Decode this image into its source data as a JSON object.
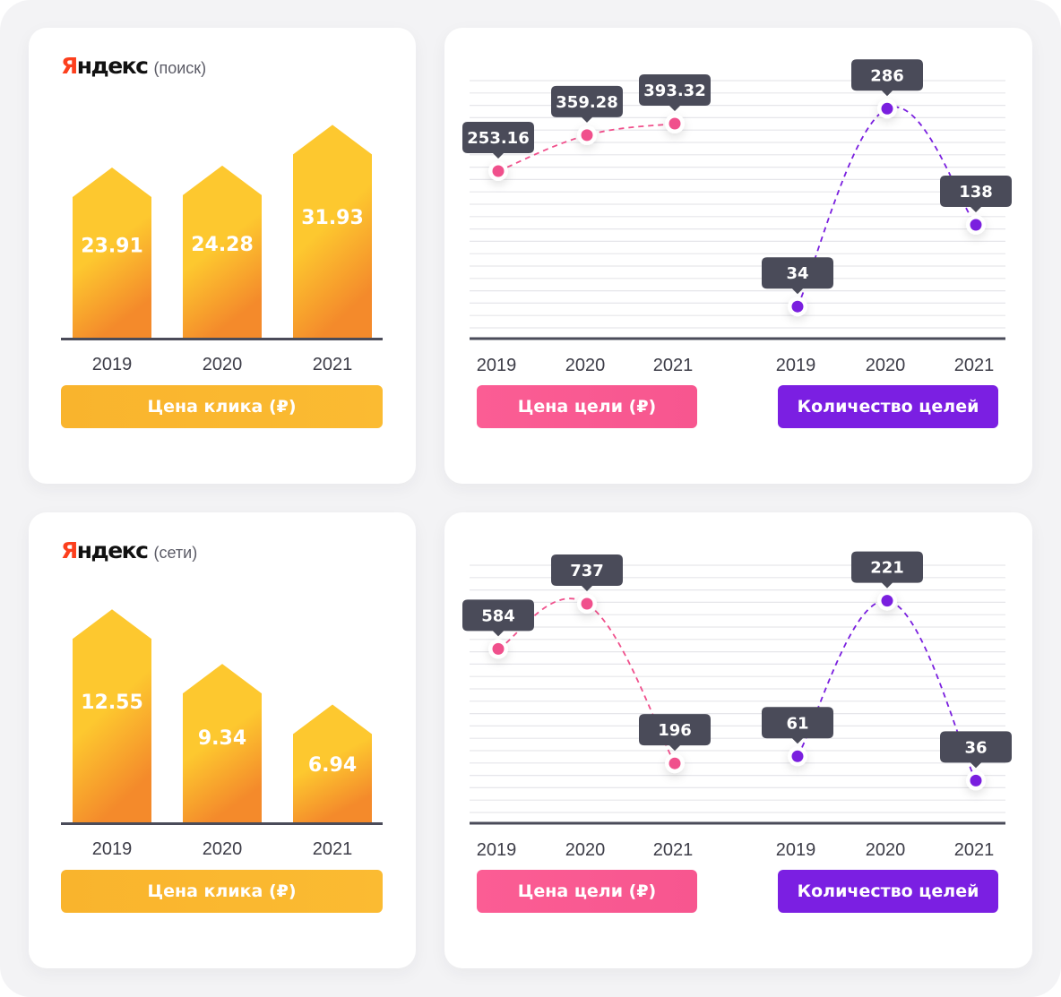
{
  "colors": {
    "bar_top": "#fdc82f",
    "bar_bottom": "#f48a2b",
    "pink": "#f0508c",
    "purple": "#7a1fdf",
    "tooltip": "#4a4b59",
    "axis": "#4a4b59",
    "grid": "#e6e6ea"
  },
  "panels": [
    {
      "brand": {
        "logo": "Яндекс",
        "logo_first": "Я",
        "logo_rest": "ндекс",
        "subtitle": "(поиск)"
      },
      "bar_button": "Цена клика (₽)",
      "pink_button": "Цена цели (₽)",
      "purple_button": "Количество целей"
    },
    {
      "brand": {
        "logo": "Яндекс",
        "logo_first": "Я",
        "logo_rest": "ндекс",
        "subtitle": "(сети)"
      },
      "bar_button": "Цена клика (₽)",
      "pink_button": "Цена цели (₽)",
      "purple_button": "Количество целей"
    }
  ],
  "chart_data": [
    {
      "type": "bar",
      "title": "Яндекс (поиск)",
      "xlabel": "Цена клика (₽)",
      "categories": [
        "2019",
        "2020",
        "2021"
      ],
      "values": [
        23.91,
        24.28,
        31.93
      ],
      "value_labels": [
        "23.91",
        "24.28",
        "31.93"
      ],
      "ylim": [
        -8,
        34
      ],
      "grid": false
    },
    {
      "type": "line",
      "title": "Яндекс (поиск)",
      "grid": true,
      "series": [
        {
          "name": "Цена цели (₽)",
          "x": [
            "2019",
            "2020",
            "2021"
          ],
          "values": [
            253.16,
            359.28,
            393.32
          ],
          "labels": [
            "253.16",
            "359.28",
            "393.32"
          ],
          "ylim": [
            -170,
            470
          ]
        },
        {
          "name": "Количество целей",
          "x": [
            "2019",
            "2020",
            "2021"
          ],
          "values": [
            34,
            286,
            138
          ],
          "labels": [
            "34",
            "286",
            "138"
          ],
          "ylim": [
            24,
            300
          ]
        }
      ]
    },
    {
      "type": "bar",
      "title": "Яндекс (сети)",
      "xlabel": "Цена клика (₽)",
      "categories": [
        "2019",
        "2020",
        "2021"
      ],
      "values": [
        12.55,
        9.34,
        6.94
      ],
      "value_labels": [
        "12.55",
        "9.34",
        "6.94"
      ],
      "ylim": [
        0,
        13.2
      ],
      "grid": false
    },
    {
      "type": "line",
      "title": "Яндекс (сети)",
      "grid": true,
      "series": [
        {
          "name": "Цена цели (₽)",
          "x": [
            "2019",
            "2020",
            "2021"
          ],
          "values": [
            584,
            737,
            196
          ],
          "labels": [
            "584",
            "737",
            "196"
          ],
          "ylim": [
            75,
            810
          ]
        },
        {
          "name": "Количество целей",
          "x": [
            "2019",
            "2020",
            "2021"
          ],
          "values": [
            61,
            221,
            36
          ],
          "labels": [
            "61",
            "221",
            "36"
          ],
          "ylim": [
            17,
            240
          ]
        }
      ]
    }
  ]
}
